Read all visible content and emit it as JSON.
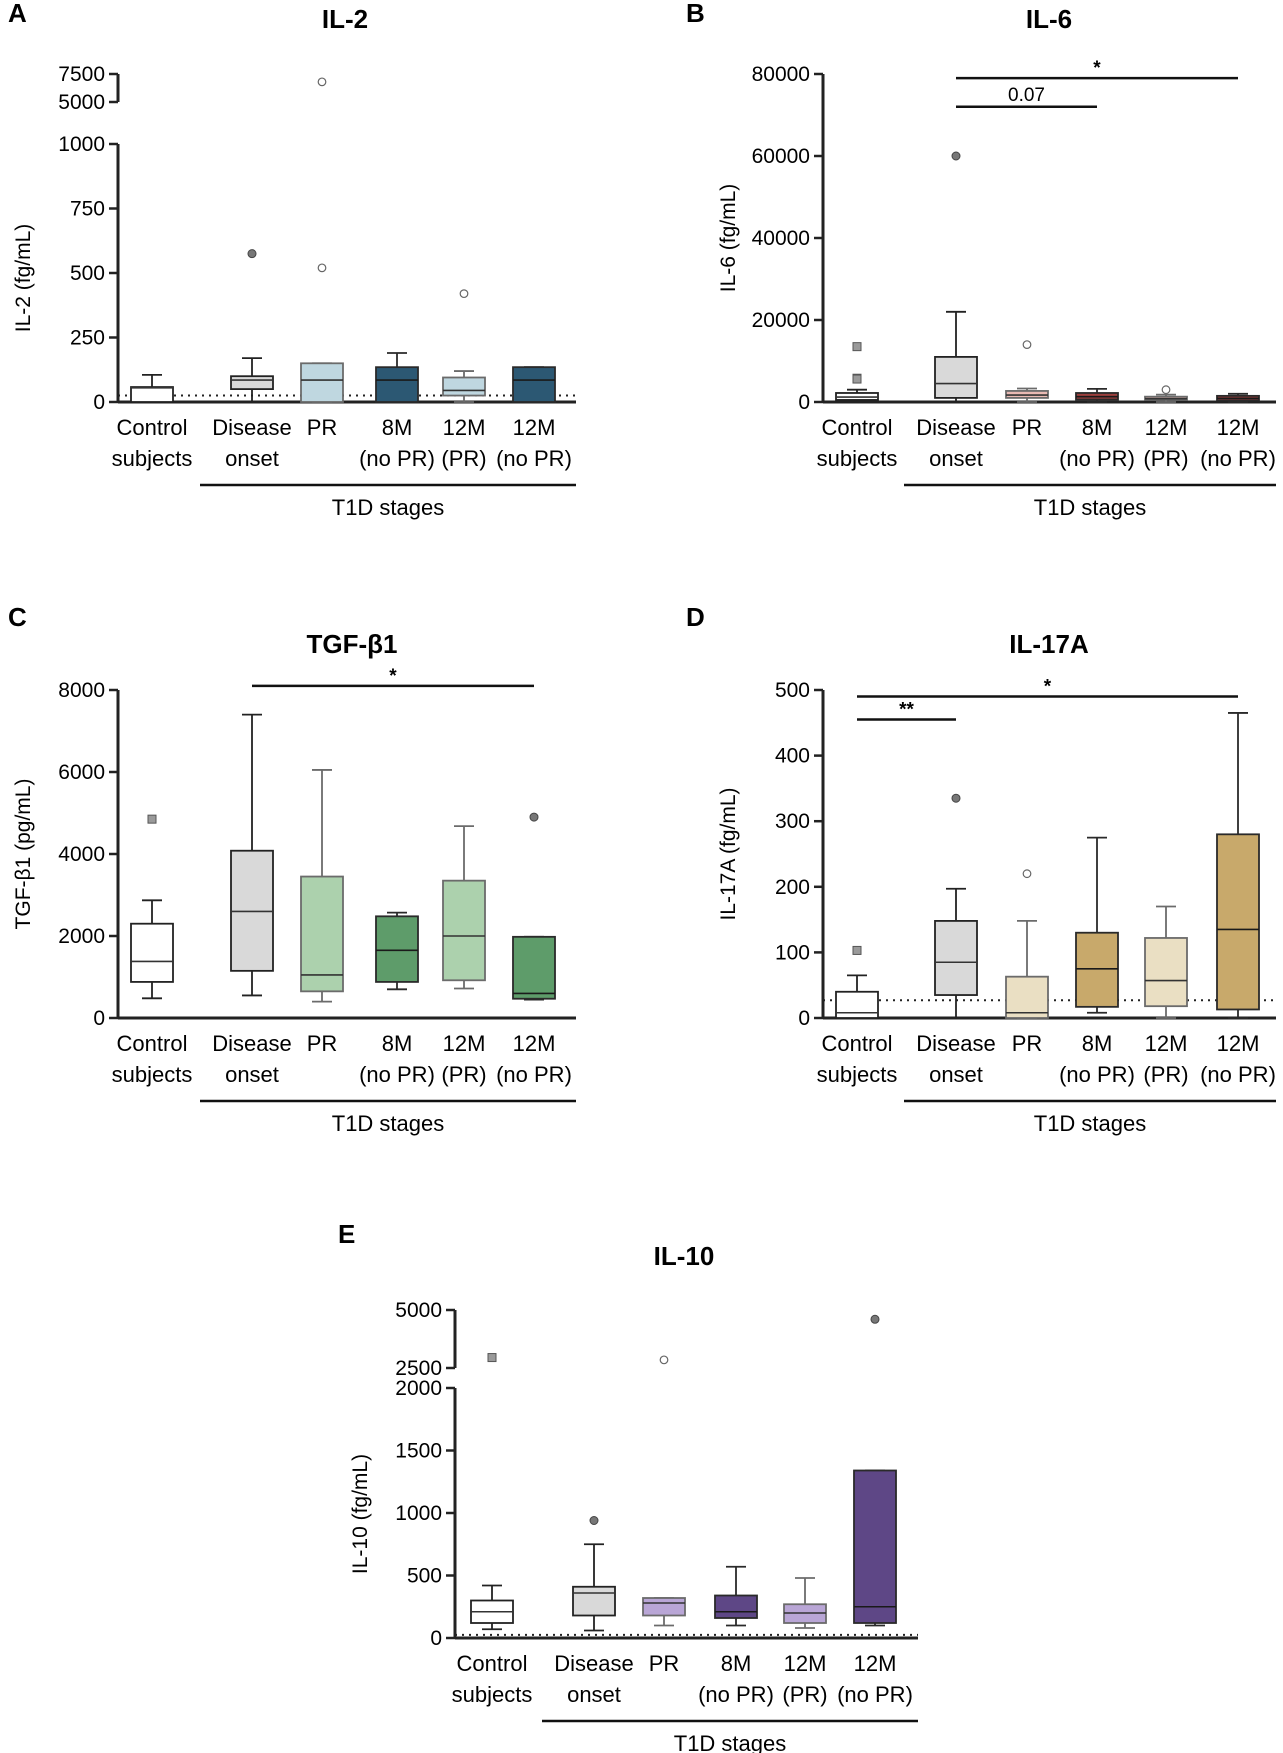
{
  "figure": {
    "stage_label": "T1D stages",
    "categories": [
      [
        "Control",
        "subjects"
      ],
      [
        "Disease",
        "onset"
      ],
      [
        "PR"
      ],
      [
        "8M",
        "(no PR)"
      ],
      [
        "12M",
        "(PR)"
      ],
      [
        "12M",
        "(no PR)"
      ]
    ]
  },
  "chart_data": [
    {
      "panel": "A",
      "type": "box",
      "title": "IL-2",
      "ylabel": "IL-2 (fg/mL)",
      "axis_break": true,
      "ylim_lower": [
        0,
        1000
      ],
      "ylim_upper": [
        5000,
        7500
      ],
      "yticks_lower": [
        "0",
        "250",
        "500",
        "750",
        "1000"
      ],
      "yticks_upper": [
        "5000",
        "7500"
      ],
      "detection_limit": 25,
      "colors": [
        "#ffffff",
        "#d9d9d9",
        "#bfd7e0",
        "#2c5873",
        "#bfd7e0",
        "#2c5873"
      ],
      "boxes": [
        {
          "min": 0,
          "q1": 0,
          "median": 55,
          "q3": 58,
          "max": 105,
          "outliers": []
        },
        {
          "min": 0,
          "q1": 50,
          "median": 85,
          "q3": 100,
          "max": 170,
          "outliers": [
            575
          ]
        },
        {
          "min": 0,
          "q1": 0,
          "median": 85,
          "q3": 150,
          "max": 150,
          "outliers": [
            520,
            6800
          ]
        },
        {
          "min": 0,
          "q1": 0,
          "median": 85,
          "q3": 135,
          "max": 190,
          "outliers": []
        },
        {
          "min": 0,
          "q1": 25,
          "median": 45,
          "q3": 95,
          "max": 120,
          "outliers": [
            420
          ]
        },
        {
          "min": 0,
          "q1": 0,
          "median": 85,
          "q3": 135,
          "max": 135,
          "outliers": []
        }
      ],
      "annotations": []
    },
    {
      "panel": "B",
      "type": "box",
      "title": "IL-6",
      "ylabel": "IL-6 (fg/mL)",
      "ylim": [
        0,
        80000
      ],
      "yticks": [
        "0",
        "20000",
        "40000",
        "60000",
        "80000"
      ],
      "colors": [
        "#ffffff",
        "#d9d9d9",
        "#e8b9b3",
        "#9d3f3c",
        "#e8b9b3",
        "#9d3f3c"
      ],
      "boxes": [
        {
          "min": 0,
          "q1": 500,
          "median": 1200,
          "q3": 2200,
          "max": 3000,
          "outliers": [
            13500,
            5800,
            5600
          ]
        },
        {
          "min": 0,
          "q1": 1000,
          "median": 4500,
          "q3": 11000,
          "max": 22000,
          "outliers": [
            60000
          ]
        },
        {
          "min": 0,
          "q1": 1000,
          "median": 1700,
          "q3": 2700,
          "max": 3300,
          "outliers": [
            14000
          ]
        },
        {
          "min": 0,
          "q1": 600,
          "median": 1300,
          "q3": 2200,
          "max": 3200,
          "outliers": []
        },
        {
          "min": 0,
          "q1": 500,
          "median": 800,
          "q3": 1300,
          "max": 1800,
          "outliers": [
            3000
          ]
        },
        {
          "min": 0,
          "q1": 400,
          "median": 900,
          "q3": 1500,
          "max": 2000,
          "outliers": []
        }
      ],
      "annotations": [
        {
          "from": 1,
          "to": 5,
          "label": "*",
          "y": 79000
        },
        {
          "from": 1,
          "to": 3,
          "label": "0.07",
          "y": 72000
        }
      ]
    },
    {
      "panel": "C",
      "type": "box",
      "title": "TGF-β1",
      "ylabel": "TGF-β1 (pg/mL)",
      "ylim": [
        0,
        8000
      ],
      "yticks": [
        "0",
        "2000",
        "4000",
        "6000",
        "8000"
      ],
      "colors": [
        "#ffffff",
        "#d9d9d9",
        "#acd1ad",
        "#5e9c6a",
        "#acd1ad",
        "#5e9c6a"
      ],
      "boxes": [
        {
          "min": 480,
          "q1": 880,
          "median": 1380,
          "q3": 2300,
          "max": 2870,
          "outliers": [
            4850
          ]
        },
        {
          "min": 550,
          "q1": 1150,
          "median": 2600,
          "q3": 4080,
          "max": 7400,
          "outliers": []
        },
        {
          "min": 400,
          "q1": 650,
          "median": 1050,
          "q3": 3450,
          "max": 6050,
          "outliers": []
        },
        {
          "min": 700,
          "q1": 880,
          "median": 1650,
          "q3": 2480,
          "max": 2570,
          "outliers": []
        },
        {
          "min": 720,
          "q1": 920,
          "median": 2000,
          "q3": 3350,
          "max": 4680,
          "outliers": []
        },
        {
          "min": 450,
          "q1": 470,
          "median": 600,
          "q3": 1980,
          "max": 1980,
          "outliers": [
            4900
          ]
        }
      ],
      "annotations": [
        {
          "from": 1,
          "to": 5,
          "label": "*",
          "y": 8100
        }
      ]
    },
    {
      "panel": "D",
      "type": "box",
      "title": "IL-17A",
      "ylabel": "IL-17A (fg/mL)",
      "ylim": [
        0,
        500
      ],
      "yticks": [
        "0",
        "100",
        "200",
        "300",
        "400",
        "500"
      ],
      "detection_limit": 27,
      "colors": [
        "#ffffff",
        "#d9d9d9",
        "#eadfc3",
        "#c8a96b",
        "#eadfc3",
        "#c8a96b"
      ],
      "boxes": [
        {
          "min": 0,
          "q1": 0,
          "median": 8,
          "q3": 40,
          "max": 65,
          "outliers": [
            103
          ]
        },
        {
          "min": 0,
          "q1": 35,
          "median": 85,
          "q3": 148,
          "max": 197,
          "outliers": [
            335
          ]
        },
        {
          "min": 0,
          "q1": 0,
          "median": 8,
          "q3": 63,
          "max": 148,
          "outliers": [
            220
          ]
        },
        {
          "min": 8,
          "q1": 17,
          "median": 75,
          "q3": 130,
          "max": 275,
          "outliers": []
        },
        {
          "min": 0,
          "q1": 18,
          "median": 57,
          "q3": 122,
          "max": 170,
          "outliers": []
        },
        {
          "min": 0,
          "q1": 13,
          "median": 135,
          "q3": 280,
          "max": 465,
          "outliers": []
        }
      ],
      "annotations": [
        {
          "from": 0,
          "to": 5,
          "label": "*",
          "y": 490
        },
        {
          "from": 0,
          "to": 1,
          "label": "**",
          "y": 455
        }
      ]
    },
    {
      "panel": "E",
      "type": "box",
      "title": "IL-10",
      "ylabel": "IL-10 (fg/mL)",
      "axis_break": true,
      "ylim_lower": [
        0,
        2000
      ],
      "ylim_upper": [
        2500,
        5000
      ],
      "yticks_lower": [
        "0",
        "500",
        "1000",
        "1500",
        "2000"
      ],
      "yticks_upper": [
        "2500",
        "5000"
      ],
      "detection_limit": 25,
      "colors": [
        "#ffffff",
        "#d9d9d9",
        "#b9a6d6",
        "#5e4786",
        "#b9a6d6",
        "#5e4786"
      ],
      "boxes": [
        {
          "min": 70,
          "q1": 120,
          "median": 210,
          "q3": 300,
          "max": 420,
          "outliers": [
            2950
          ]
        },
        {
          "min": 60,
          "q1": 180,
          "median": 360,
          "q3": 410,
          "max": 750,
          "outliers": [
            940
          ]
        },
        {
          "min": 100,
          "q1": 180,
          "median": 280,
          "q3": 320,
          "max": 320,
          "outliers": [
            2850
          ]
        },
        {
          "min": 100,
          "q1": 160,
          "median": 210,
          "q3": 340,
          "max": 570,
          "outliers": []
        },
        {
          "min": 80,
          "q1": 120,
          "median": 200,
          "q3": 270,
          "max": 480,
          "outliers": []
        },
        {
          "min": 100,
          "q1": 120,
          "median": 250,
          "q3": 1340,
          "max": 1340,
          "outliers": [
            4600
          ]
        }
      ],
      "annotations": []
    }
  ]
}
